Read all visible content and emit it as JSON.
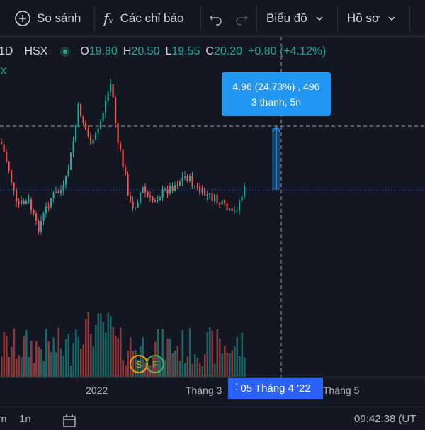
{
  "toolbar": {
    "compare_label": "So sánh",
    "indicators_label": "Các chỉ báo",
    "chart_label": "Biểu đồ",
    "profile_label": "Hồ sơ"
  },
  "legend": {
    "interval": "1D",
    "exchange": "HSX",
    "open_label": "O",
    "open": "19.80",
    "high_label": "H",
    "high": "20.50",
    "low_label": "L",
    "low": "19.55",
    "close_label": "C",
    "close": "20.20",
    "change": "+0.80 (+4.12%)",
    "sub_mark": "X"
  },
  "measure": {
    "line1": "4.96 (24.73%) , 496",
    "line2": "3 thanh, 5n"
  },
  "xaxis": {
    "label_2022": "2022",
    "label_thang3": "Tháng 3",
    "crosshair": "05 Tháng 4 '22",
    "label_thang5": "Tháng 5"
  },
  "markers": {
    "s": "S",
    "f": "F"
  },
  "bottom": {
    "range_1m": "1n",
    "time": "09:42:38 (UT"
  },
  "colors": {
    "up": "#26a69a",
    "down": "#ef5350",
    "accent": "#2962ff",
    "measure": "#2196f3",
    "background": "#131722"
  },
  "icons": [
    "plus-circle-icon",
    "fx-icon",
    "undo-icon",
    "redo-icon",
    "chevron-down-icon",
    "calendar-icon"
  ]
}
